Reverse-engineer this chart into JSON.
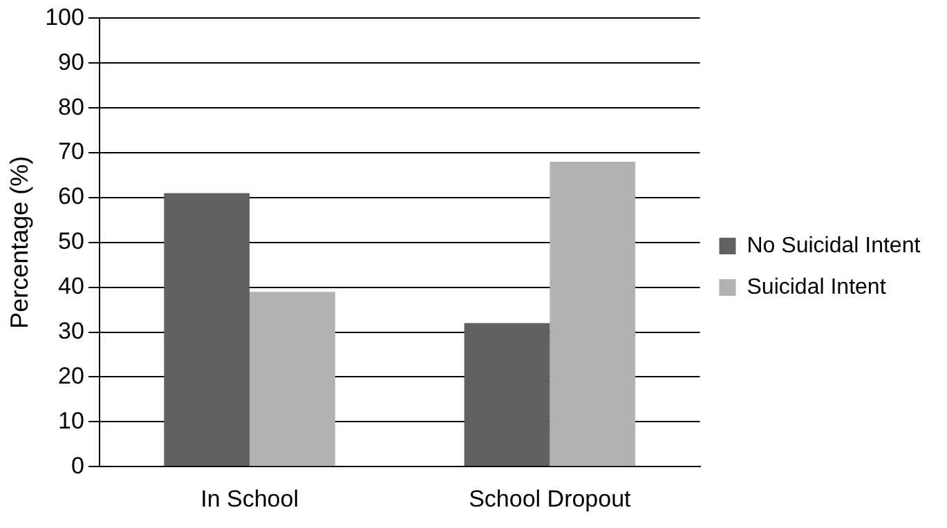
{
  "chart_data": {
    "type": "bar",
    "ylabel": "Percentage (%)",
    "categories": [
      "In School",
      "School Dropout"
    ],
    "series": [
      {
        "name": "No Suicidal Intent",
        "color": "#606060",
        "values": [
          61,
          32
        ]
      },
      {
        "name": "Suicidal Intent",
        "color": "#b2b2b2",
        "values": [
          39,
          68
        ]
      }
    ],
    "ylim": [
      0,
      100
    ],
    "yticks": [
      0,
      10,
      20,
      30,
      40,
      50,
      60,
      70,
      80,
      90,
      100
    ],
    "grid": "y",
    "legend": "right"
  }
}
